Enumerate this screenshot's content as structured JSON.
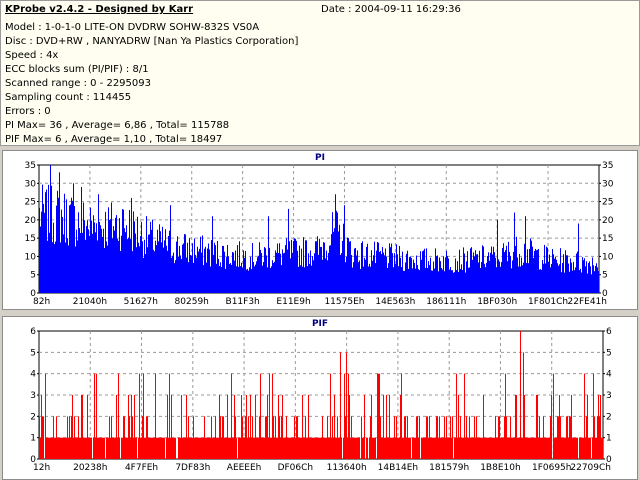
{
  "header": {
    "app_title": "KProbe v2.4.2 - Designed by Karr",
    "date": "Date : 2004-09-11 16:29:36",
    "lines": [
      "Model : 1-0-1-0 LITE-ON DVDRW SOHW-832S  VS0A",
      "Disc : DVD+RW , NANYADRW [Nan Ya Plastics Corporation]",
      "Speed : 4x",
      "ECC blocks sum (PI/PIF) : 8/1",
      "Scanned range : 0 - 2295093",
      "Sampling count : 114455",
      "Errors : 0",
      "PI Max= 36 , Average= 6,86 , Total= 115788",
      "PIF Max= 6 , Average= 1,10 , Total= 18497"
    ]
  },
  "chart_data": [
    {
      "type": "bar",
      "title": "PI",
      "color": "#0000ff",
      "ylim": [
        0,
        35
      ],
      "yticks": [
        "0",
        "5",
        "10",
        "15",
        "20",
        "25",
        "30",
        "35"
      ],
      "xticks": [
        "82h",
        "21040h",
        "51627h",
        "80259h",
        "B11F3h",
        "E11E9h",
        "11575Eh",
        "14E563h",
        "186111h",
        "1BF030h",
        "1F801Ch",
        "22FE41h"
      ],
      "profile": [
        [
          0,
          24
        ],
        [
          0.05,
          23
        ],
        [
          0.1,
          20
        ],
        [
          0.15,
          21
        ],
        [
          0.19,
          17
        ],
        [
          0.24,
          14
        ],
        [
          0.32,
          12
        ],
        [
          0.38,
          11
        ],
        [
          0.44,
          12
        ],
        [
          0.5,
          13
        ],
        [
          0.53,
          19
        ],
        [
          0.56,
          12
        ],
        [
          0.62,
          11
        ],
        [
          0.68,
          10
        ],
        [
          0.76,
          10
        ],
        [
          0.82,
          11
        ],
        [
          0.86,
          13
        ],
        [
          0.92,
          10
        ],
        [
          1,
          9
        ]
      ],
      "peaks": [
        [
          0.02,
          36
        ],
        [
          0.035,
          33
        ],
        [
          0.06,
          30
        ],
        [
          0.075,
          29
        ],
        [
          0.105,
          27
        ],
        [
          0.165,
          26
        ],
        [
          0.235,
          24
        ],
        [
          0.31,
          21
        ],
        [
          0.41,
          21
        ],
        [
          0.445,
          23
        ],
        [
          0.53,
          27
        ],
        [
          0.545,
          24
        ],
        [
          0.82,
          20
        ],
        [
          0.85,
          22
        ],
        [
          0.87,
          21
        ],
        [
          0.965,
          19
        ]
      ]
    },
    {
      "type": "bar",
      "title": "PIF",
      "color": "#ff0000",
      "ylim": [
        0,
        6
      ],
      "yticks": [
        "0",
        "1",
        "2",
        "3",
        "4",
        "5",
        "6"
      ],
      "xticks": [
        "12h",
        "20238h",
        "4F7FEh",
        "7DF83h",
        "AEEEEh",
        "DF06Ch",
        "113640h",
        "14B14Eh",
        "181579h",
        "1B8E10h",
        "1F0695h",
        "22709Ch"
      ],
      "peaks": [
        [
          0.535,
          5
        ],
        [
          0.545,
          5
        ],
        [
          0.855,
          6
        ],
        [
          0.86,
          5
        ]
      ]
    }
  ]
}
